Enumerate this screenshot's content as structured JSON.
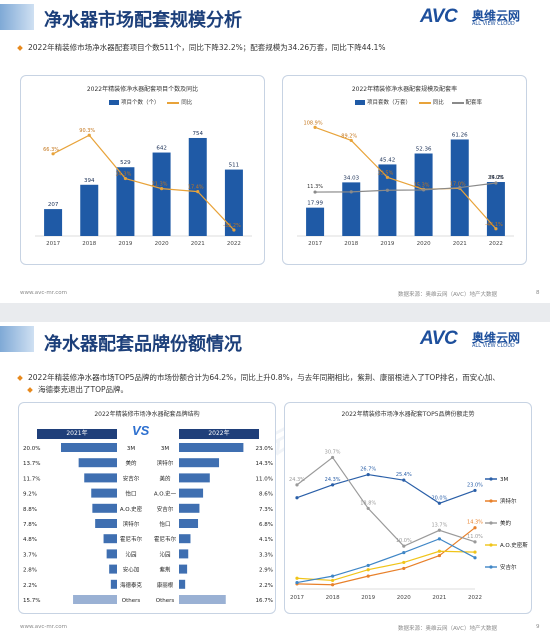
{
  "slide1": {
    "title": "净水器市场配套规模分析",
    "summary": "2022年精装修市场净水器配套项目个数511个，同比下降32.2%；配套规模为34.26万套，同比下降44.1%",
    "footer_left": "www.avc-mr.com",
    "footer_right": "数据来源：奥维云网（AVC）地产大数据",
    "page_number": "8",
    "chart_left": {
      "title": "2022年精装修净水器配套项目个数及同比",
      "legend": [
        "项目个数（个）",
        "同比"
      ],
      "categories": [
        "2017",
        "2018",
        "2019",
        "2020",
        "2021",
        "2022"
      ],
      "bars": [
        207,
        394,
        529,
        642,
        754,
        511
      ],
      "bar_labels": [
        "207",
        "394",
        "529",
        "642",
        "754",
        "511"
      ],
      "growth": [
        66.3,
        90.3,
        34.3,
        21.3,
        17.4,
        -32.2
      ],
      "growth_labels": [
        "66.3%",
        "90.3%",
        "34.3%",
        "21.3%",
        "17.4%",
        "-32.2%"
      ]
    },
    "chart_right": {
      "title": "2022年精装修净水器配套规模及配套率",
      "legend": [
        "项目套数（万套）",
        "同比",
        "配套率"
      ],
      "categories": [
        "2017",
        "2018",
        "2019",
        "2020",
        "2021",
        "2022"
      ],
      "bars": [
        17.99,
        34.03,
        45.42,
        52.36,
        61.26,
        34.26
      ],
      "bar_labels": [
        "17.99",
        "34.03",
        "45.42",
        "52.36",
        "61.26",
        "34.26"
      ],
      "growth": [
        108.9,
        89.2,
        33.5,
        15.3,
        17.0,
        -44.1
      ],
      "growth_labels": [
        "108.9%",
        "89.2%",
        "33.5%",
        "15.3%",
        "17.0%",
        "-44.1%"
      ],
      "rate": [
        11.3,
        11.6,
        14.0,
        14.5,
        18.1,
        25.0
      ],
      "rate_labels": [
        "11.3%",
        "",
        "",
        "",
        "",
        "25.0%"
      ]
    }
  },
  "slide2": {
    "title": "净水器配套品牌份额情况",
    "summary_line1": "2022年精装修净水器市场TOP5品牌的市场份额合计为64.2%，同比上升0.8%，与去年同期相比，紫荆、康丽根进入了TOP排名，而安心加、",
    "summary_line2": "海德泰克退出了TOP品牌。",
    "footer_left": "www.avc-mr.com",
    "footer_right": "数据来源：奥维云网（AVC）地产大数据",
    "page_number": "9",
    "table_title": "2022年精装修市场净水器配套品牌结构",
    "vs_label": "VS",
    "year_left": "2021年",
    "year_right": "2022年",
    "brands_2021": [
      {
        "brand": "3M",
        "share": "20.0%",
        "value": 20.0
      },
      {
        "brand": "美的",
        "share": "13.7%",
        "value": 13.7
      },
      {
        "brand": "安吉尔",
        "share": "11.7%",
        "value": 11.7
      },
      {
        "brand": "怡口",
        "share": "9.2%",
        "value": 9.2
      },
      {
        "brand": "A.O.史密",
        "share": "8.8%",
        "value": 8.8
      },
      {
        "brand": "滨特尔",
        "share": "7.8%",
        "value": 7.8
      },
      {
        "brand": "霍尼韦尔",
        "share": "4.8%",
        "value": 4.8
      },
      {
        "brand": "沁园",
        "share": "3.7%",
        "value": 3.7
      },
      {
        "brand": "安心加",
        "share": "2.8%",
        "value": 2.8
      },
      {
        "brand": "海德泰克",
        "share": "2.2%",
        "value": 2.2
      },
      {
        "brand": "Others",
        "share": "15.7%",
        "value": 15.7
      }
    ],
    "brands_2022": [
      {
        "brand": "3M",
        "share": "23.0%",
        "value": 23.0
      },
      {
        "brand": "滨特尔",
        "share": "14.3%",
        "value": 14.3
      },
      {
        "brand": "美的",
        "share": "11.0%",
        "value": 11.0
      },
      {
        "brand": "A.O.史一",
        "share": "8.6%",
        "value": 8.6
      },
      {
        "brand": "安吉尔",
        "share": "7.3%",
        "value": 7.3
      },
      {
        "brand": "怡口",
        "share": "6.8%",
        "value": 6.8
      },
      {
        "brand": "霍尼韦尔",
        "share": "4.1%",
        "value": 4.1
      },
      {
        "brand": "沁园",
        "share": "3.3%",
        "value": 3.3
      },
      {
        "brand": "紫荆",
        "share": "2.9%",
        "value": 2.9
      },
      {
        "brand": "康丽根",
        "share": "2.2%",
        "value": 2.2
      },
      {
        "brand": "Others",
        "share": "16.7%",
        "value": 16.7
      }
    ],
    "trend_chart": {
      "title": "2022年精装修市场净水器配套TOP5品牌份额走势",
      "categories": [
        "2017",
        "2018",
        "2019",
        "2020",
        "2021",
        "2022"
      ],
      "series": [
        {
          "name": "3M",
          "color": "#2a5fa8",
          "values": [
            21.3,
            24.3,
            26.7,
            25.4,
            20.0,
            23.0
          ],
          "labels": [
            "",
            "24.3%",
            "26.7%",
            "25.4%",
            "20.0%",
            "23.0%"
          ]
        },
        {
          "name": "滨特尔",
          "color": "#e8802a",
          "values": [
            1.2,
            1.0,
            3.0,
            4.8,
            7.8,
            14.3
          ],
          "labels": [
            "",
            "",
            "",
            "",
            "",
            "14.3%"
          ]
        },
        {
          "name": "美的",
          "color": "#9a9a9a",
          "values": [
            24.3,
            30.7,
            18.8,
            10.0,
            13.7,
            11.0
          ],
          "labels": [
            "24.3%",
            "30.7%",
            "18.8%",
            "10.0%",
            "13.7%",
            "11.0%"
          ]
        },
        {
          "name": "A.O.史密斯",
          "color": "#f0c419",
          "values": [
            2.5,
            2.0,
            4.5,
            6.2,
            8.8,
            8.6
          ],
          "labels": [
            "",
            "",
            "",
            "",
            "",
            ""
          ]
        },
        {
          "name": "安吉尔",
          "color": "#3f86c6",
          "values": [
            1.5,
            3.0,
            5.5,
            8.5,
            11.7,
            7.3
          ],
          "labels": [
            "",
            "",
            "",
            "",
            "",
            ""
          ]
        }
      ]
    }
  },
  "brand": {
    "logo_text": "AVC",
    "logo_cn": "奥维云网",
    "logo_en": "ALL VIEW CLOUD",
    "watermark": "AVC 奥维云网"
  }
}
